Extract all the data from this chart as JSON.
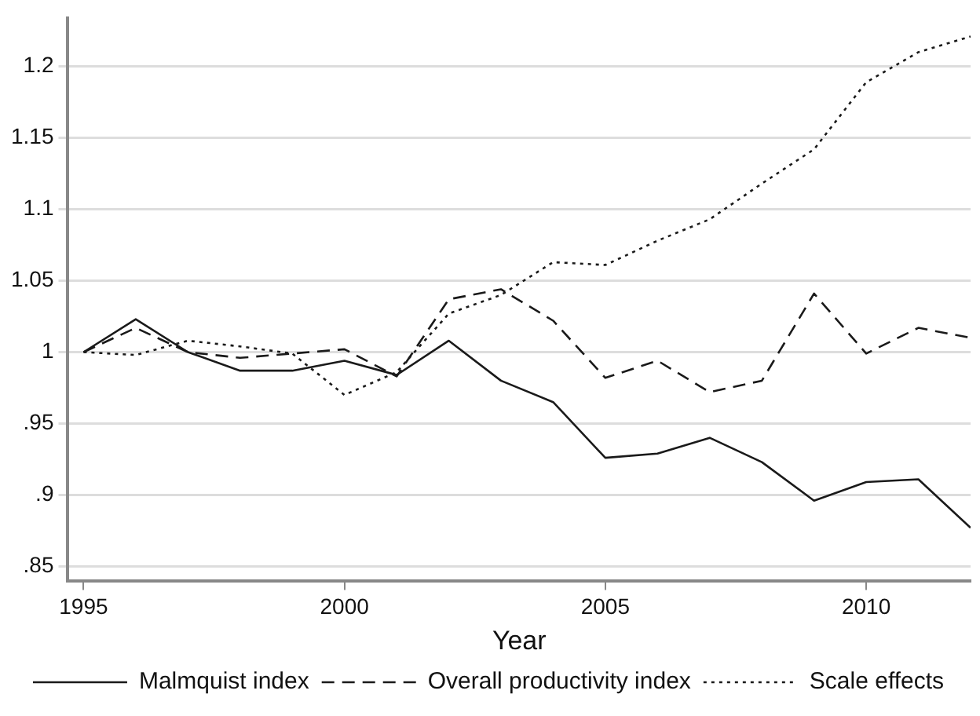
{
  "chart_data": {
    "type": "line",
    "xlabel": "Year",
    "x": [
      1995,
      1996,
      1997,
      1998,
      1999,
      2000,
      2001,
      2002,
      2003,
      2004,
      2005,
      2006,
      2007,
      2008,
      2009,
      2010,
      2011,
      2012
    ],
    "series": [
      {
        "name": "Malmquist index",
        "color": "#1a1a1a",
        "line_style": "solid",
        "values": [
          1.0,
          1.023,
          1.0,
          0.987,
          0.987,
          0.994,
          0.984,
          1.008,
          0.98,
          0.965,
          0.926,
          0.929,
          0.94,
          0.923,
          0.896,
          0.909,
          0.911,
          0.877
        ]
      },
      {
        "name": "Overall productivity index",
        "color": "#1a1a1a",
        "line_style": "dashed",
        "values": [
          1.0,
          1.017,
          1.0,
          0.996,
          0.999,
          1.002,
          0.983,
          1.037,
          1.044,
          1.022,
          0.982,
          0.994,
          0.972,
          0.98,
          1.041,
          0.999,
          1.017,
          1.01
        ]
      },
      {
        "name": "Scale effects",
        "color": "#1a1a1a",
        "line_style": "dotted",
        "values": [
          1.0,
          0.998,
          1.008,
          1.004,
          0.999,
          0.97,
          0.986,
          1.027,
          1.04,
          1.063,
          1.061,
          1.078,
          1.093,
          1.118,
          1.142,
          1.189,
          1.21,
          1.221
        ]
      }
    ],
    "xlim": [
      1994.7,
      2012
    ],
    "xticks": [
      1995,
      2000,
      2005,
      2010
    ],
    "ylim": [
      0.84,
      1.234
    ],
    "yticks": [
      {
        "value": 0.85,
        "label": ".85"
      },
      {
        "value": 0.9,
        "label": ".9"
      },
      {
        "value": 0.95,
        "label": ".95"
      },
      1,
      1.05,
      1.1,
      1.15,
      1.2
    ],
    "grid": "y",
    "legend": "bottom",
    "marker": "none"
  }
}
